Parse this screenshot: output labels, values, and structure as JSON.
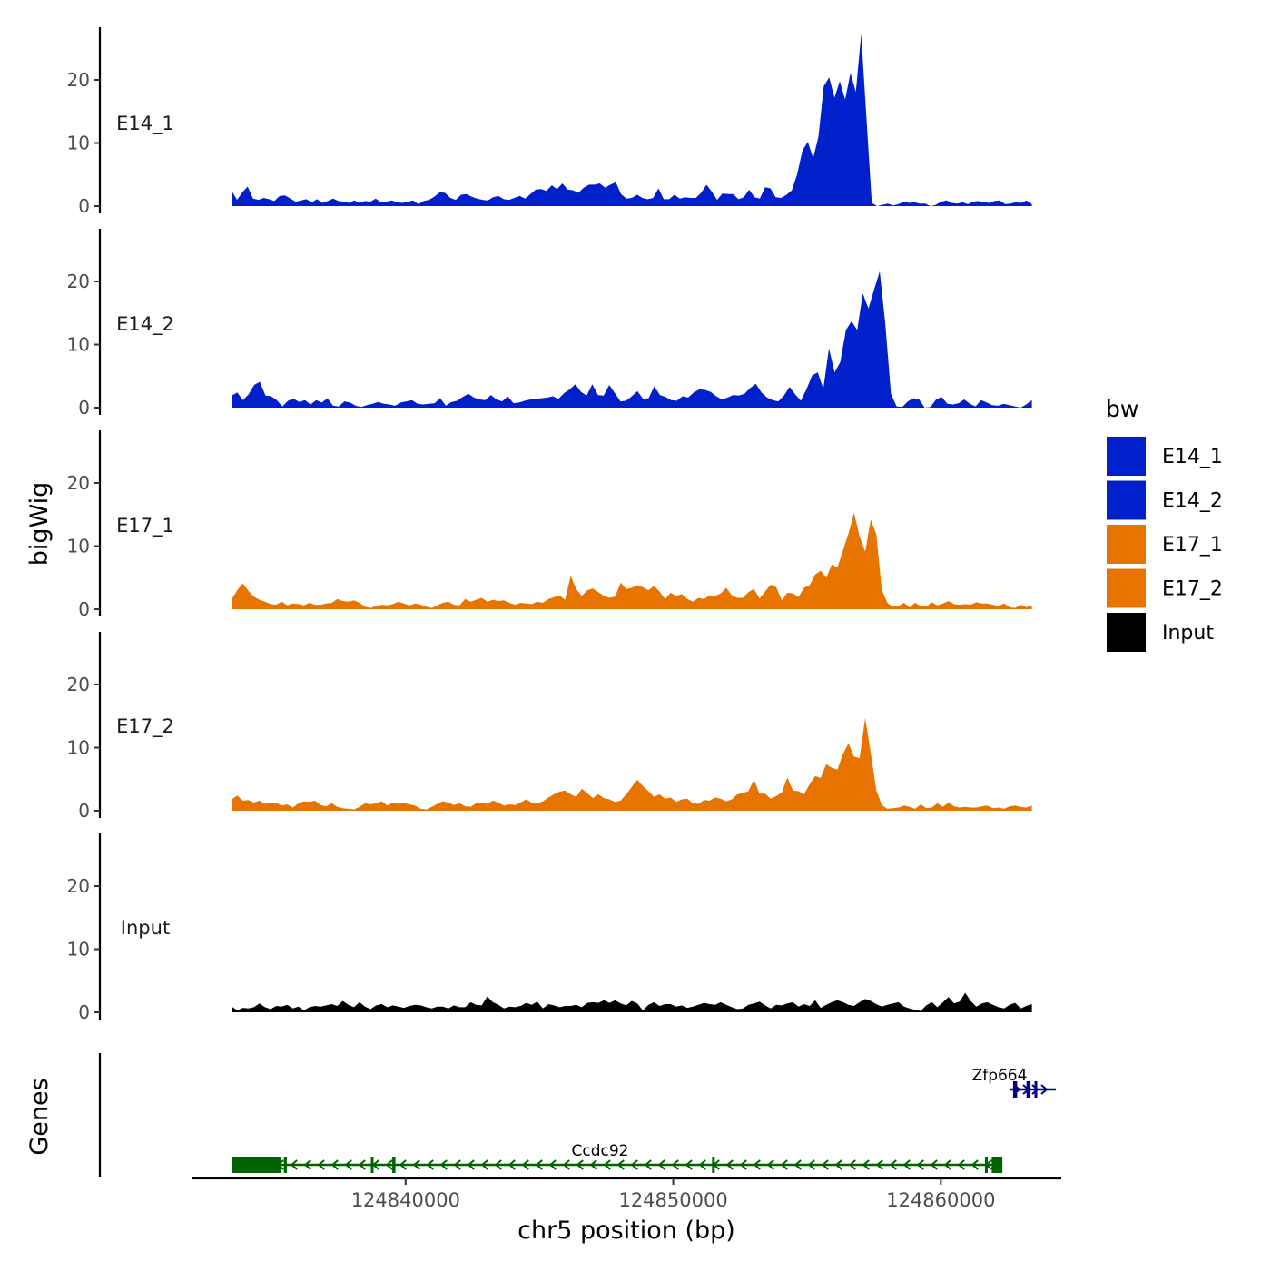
{
  "chart_data": {
    "type": "area",
    "ylabel": "bigWig",
    "genes_label": "Genes",
    "xlabel": "chr5 position (bp)",
    "xlim": [
      124832000,
      124864500
    ],
    "x_range_signal": [
      124833500,
      124863400
    ],
    "x_ticks": [
      124840000,
      124850000,
      124860000
    ],
    "x_tick_labels": [
      "124840000",
      "124850000",
      "124860000"
    ],
    "ylim": [
      0,
      27
    ],
    "y_ticks": [
      0,
      10,
      20
    ],
    "y_tick_labels": [
      "0",
      "10",
      "20"
    ],
    "legend": {
      "title": "bw",
      "position": "right",
      "entries": [
        {
          "label": "E14_1",
          "color": "#0020CC"
        },
        {
          "label": "E14_2",
          "color": "#0020CC"
        },
        {
          "label": "E17_1",
          "color": "#E87400"
        },
        {
          "label": "E17_2",
          "color": "#E87400"
        },
        {
          "label": "Input",
          "color": "#000000"
        }
      ]
    },
    "series": [
      {
        "name": "E14_1",
        "color": "#0020CC",
        "values": [
          2.4,
          1.0,
          2.2,
          3.1,
          1.2,
          1.0,
          1.3,
          1.1,
          0.8,
          1.6,
          1.7,
          1.2,
          0.7,
          0.9,
          1.1,
          0.6,
          1.1,
          0.5,
          0.8,
          1.2,
          0.8,
          0.7,
          0.5,
          0.9,
          0.5,
          0.8,
          0.7,
          1.2,
          0.6,
          0.7,
          0.9,
          0.6,
          0.5,
          0.7,
          0.9,
          0.3,
          0.8,
          1.0,
          1.5,
          2.2,
          2.1,
          1.3,
          1.0,
          1.8,
          1.9,
          1.5,
          1.2,
          1.0,
          0.9,
          1.4,
          1.6,
          1.1,
          1.0,
          1.3,
          1.6,
          1.2,
          1.9,
          2.6,
          2.7,
          2.4,
          3.3,
          2.7,
          3.6,
          2.6,
          2.5,
          2.1,
          2.9,
          3.4,
          3.4,
          3.6,
          2.9,
          3.4,
          3.8,
          1.9,
          1.2,
          1.3,
          1.8,
          1.3,
          1.1,
          1.3,
          2.8,
          1.1,
          1.1,
          1.8,
          1.2,
          1.4,
          1.3,
          1.3,
          2.1,
          3.4,
          2.3,
          1.0,
          2.0,
          1.9,
          1.9,
          1.1,
          1.4,
          2.6,
          1.4,
          1.2,
          3.0,
          2.8,
          1.4,
          1.3,
          1.8,
          2.5,
          5.0,
          8.8,
          10.2,
          7.6,
          11.0,
          19.0,
          20.4,
          17.2,
          19.8,
          16.9,
          21.1,
          18.1,
          27.3,
          13.9,
          0.5,
          0.0,
          0.2,
          0.4,
          0.1,
          0.3,
          0.7,
          0.5,
          0.6,
          0.4,
          0.4,
          0.0,
          0.2,
          0.7,
          0.9,
          0.5,
          0.4,
          0.6,
          0.3,
          0.7,
          0.8,
          0.6,
          0.5,
          0.8,
          0.9,
          0.3,
          0.4,
          0.6,
          0.5,
          0.9,
          0.3
        ]
      },
      {
        "name": "E14_2",
        "color": "#0020CC",
        "values": [
          1.9,
          2.4,
          1.2,
          2.1,
          3.6,
          4.1,
          1.9,
          1.8,
          1.2,
          0.2,
          1.1,
          1.4,
          0.9,
          1.2,
          0.5,
          1.2,
          0.8,
          1.5,
          0.3,
          0.2,
          1.0,
          0.8,
          0.3,
          0.1,
          0.4,
          0.6,
          0.9,
          0.6,
          0.5,
          0.3,
          0.8,
          1.0,
          1.2,
          0.6,
          0.5,
          0.6,
          0.7,
          1.5,
          0.3,
          0.9,
          1.1,
          1.7,
          2.2,
          1.6,
          1.3,
          1.2,
          2.0,
          1.3,
          1.0,
          1.8,
          0.7,
          0.8,
          1.1,
          1.3,
          1.4,
          1.5,
          1.6,
          1.8,
          1.4,
          2.3,
          2.9,
          3.7,
          2.5,
          1.9,
          3.7,
          2.0,
          1.9,
          3.6,
          2.3,
          1.0,
          1.1,
          1.8,
          2.6,
          1.4,
          1.5,
          3.4,
          2.0,
          1.7,
          1.2,
          1.1,
          1.8,
          1.6,
          2.4,
          2.9,
          2.8,
          2.5,
          1.8,
          1.3,
          1.6,
          2.0,
          1.9,
          2.2,
          3.1,
          3.8,
          2.4,
          1.6,
          1.2,
          1.0,
          1.9,
          3.3,
          2.1,
          1.1,
          2.9,
          5.1,
          5.6,
          3.0,
          9.4,
          5.6,
          7.2,
          12.3,
          13.7,
          12.3,
          18.1,
          15.7,
          18.7,
          21.6,
          13.2,
          2.2,
          0.2,
          0.1,
          1.0,
          1.5,
          1.3,
          0.0,
          0.1,
          1.3,
          1.7,
          0.6,
          0.5,
          0.7,
          1.3,
          0.6,
          0.2,
          1.2,
          0.8,
          0.4,
          0.3,
          0.6,
          0.4,
          0.2,
          0.0,
          0.5,
          1.2
        ]
      },
      {
        "name": "E17_1",
        "color": "#E87400",
        "values": [
          1.6,
          3.0,
          4.1,
          2.9,
          2.0,
          1.5,
          1.2,
          0.8,
          0.7,
          1.2,
          0.6,
          0.9,
          0.8,
          0.6,
          1.0,
          0.7,
          0.7,
          0.9,
          1.0,
          1.6,
          1.3,
          1.2,
          1.4,
          1.0,
          0.4,
          0.2,
          0.5,
          0.7,
          0.6,
          0.8,
          1.2,
          0.9,
          0.6,
          0.9,
          0.7,
          0.4,
          0.2,
          0.6,
          1.0,
          1.2,
          0.7,
          0.6,
          1.6,
          1.2,
          1.5,
          1.8,
          1.2,
          1.5,
          1.3,
          1.4,
          1.0,
          0.7,
          1.0,
          0.9,
          0.8,
          1.2,
          1.0,
          1.6,
          1.9,
          2.2,
          1.5,
          5.3,
          3.2,
          2.1,
          3.0,
          3.3,
          2.7,
          2.1,
          1.8,
          2.0,
          4.2,
          3.2,
          3.4,
          3.8,
          3.5,
          3.0,
          3.7,
          2.8,
          1.6,
          2.6,
          2.1,
          2.4,
          1.6,
          1.2,
          1.8,
          1.6,
          2.2,
          2.1,
          2.5,
          3.4,
          2.2,
          1.8,
          1.8,
          2.7,
          3.2,
          1.7,
          2.8,
          3.9,
          3.5,
          1.4,
          2.6,
          2.5,
          1.9,
          3.4,
          3.8,
          5.5,
          6.1,
          5.0,
          7.1,
          6.6,
          9.3,
          12.0,
          15.3,
          11.6,
          9.1,
          14.2,
          11.9,
          3.1,
          1.0,
          0.4,
          0.5,
          1.0,
          0.3,
          1.0,
          0.5,
          0.4,
          1.1,
          0.6,
          0.9,
          1.3,
          0.8,
          0.7,
          0.8,
          0.7,
          1.1,
          0.9,
          0.9,
          0.7,
          0.5,
          0.9,
          0.3,
          0.2,
          0.7,
          0.3,
          0.6
        ]
      },
      {
        "name": "E17_2",
        "color": "#E87400",
        "values": [
          1.8,
          2.4,
          1.6,
          1.7,
          1.3,
          1.6,
          1.1,
          1.2,
          1.3,
          0.8,
          1.0,
          0.5,
          1.2,
          1.5,
          1.4,
          1.6,
          0.9,
          0.7,
          1.2,
          0.6,
          0.4,
          0.3,
          0.2,
          0.6,
          1.2,
          1.0,
          1.2,
          1.5,
          0.8,
          1.3,
          1.1,
          1.2,
          1.0,
          0.8,
          0.3,
          0.2,
          0.6,
          1.1,
          1.5,
          1.3,
          0.9,
          1.2,
          0.7,
          0.6,
          1.2,
          1.3,
          1.1,
          1.6,
          1.3,
          0.8,
          1.0,
          0.9,
          1.3,
          1.8,
          1.3,
          1.2,
          1.5,
          2.1,
          2.6,
          3.0,
          3.2,
          2.6,
          2.2,
          3.5,
          2.8,
          2.0,
          2.6,
          2.0,
          1.8,
          1.4,
          1.6,
          2.6,
          3.8,
          4.9,
          3.9,
          3.1,
          2.2,
          2.6,
          1.9,
          2.1,
          1.4,
          1.8,
          1.9,
          1.2,
          1.1,
          1.7,
          1.6,
          2.1,
          1.9,
          1.5,
          1.8,
          2.6,
          2.8,
          3.1,
          4.9,
          2.7,
          2.7,
          1.9,
          2.3,
          2.9,
          5.3,
          3.2,
          3.1,
          2.6,
          4.2,
          5.5,
          5.2,
          7.4,
          6.8,
          6.5,
          9.0,
          10.7,
          8.6,
          8.3,
          14.7,
          9.2,
          3.3,
          0.9,
          0.3,
          0.4,
          0.5,
          0.8,
          0.6,
          0.3,
          1.0,
          0.4,
          0.5,
          1.2,
          0.6,
          1.3,
          0.7,
          0.5,
          0.6,
          0.5,
          0.5,
          0.7,
          0.8,
          0.4,
          0.5,
          0.3,
          0.7,
          0.8,
          0.6,
          0.5,
          0.8
        ]
      },
      {
        "name": "Input",
        "color": "#000000",
        "values": [
          0.9,
          0.3,
          0.7,
          0.6,
          0.8,
          1.4,
          0.8,
          0.5,
          1.0,
          0.9,
          1.2,
          0.6,
          0.9,
          0.3,
          0.8,
          1.0,
          0.9,
          1.1,
          1.3,
          1.0,
          1.8,
          1.2,
          0.8,
          1.6,
          0.9,
          0.5,
          1.1,
          1.3,
          0.8,
          1.1,
          0.9,
          0.7,
          1.0,
          1.2,
          1.1,
          0.8,
          0.6,
          0.9,
          0.9,
          0.6,
          1.1,
          0.8,
          0.8,
          1.6,
          1.2,
          1.1,
          2.5,
          1.6,
          1.2,
          0.6,
          0.9,
          0.8,
          1.0,
          1.5,
          1.2,
          1.7,
          0.6,
          1.3,
          1.1,
          0.8,
          1.0,
          1.0,
          1.2,
          0.8,
          1.5,
          1.6,
          1.5,
          1.9,
          1.5,
          1.9,
          1.4,
          1.1,
          1.8,
          1.4,
          0.3,
          1.2,
          1.6,
          1.0,
          1.3,
          1.3,
          0.9,
          1.1,
          0.7,
          0.9,
          1.2,
          1.5,
          1.3,
          1.2,
          1.6,
          1.2,
          0.8,
          0.5,
          0.6,
          1.2,
          1.4,
          1.7,
          1.1,
          0.6,
          1.2,
          1.1,
          1.4,
          1.6,
          0.9,
          1.3,
          1.0,
          1.9,
          0.7,
          1.2,
          1.6,
          1.9,
          1.6,
          1.2,
          1.0,
          1.6,
          2.1,
          1.8,
          1.3,
          0.9,
          1.2,
          1.4,
          1.6,
          0.9,
          0.6,
          0.4,
          0.2,
          1.1,
          1.6,
          0.8,
          1.6,
          2.4,
          1.4,
          1.7,
          3.1,
          1.8,
          0.9,
          1.4,
          1.6,
          1.2,
          0.8,
          0.6,
          1.2,
          1.5,
          0.6,
          1.0,
          1.3
        ]
      }
    ],
    "genes": [
      {
        "name": "Ccdc92",
        "color": "#006400",
        "strand": "-",
        "start": 124833500,
        "end": 124862300,
        "exons": [
          [
            124833500,
            124835350
          ],
          [
            124835450,
            124835560
          ],
          [
            124838700,
            124838800
          ],
          [
            124839500,
            124839620
          ],
          [
            124851450,
            124851500
          ],
          [
            124861650,
            124861750
          ],
          [
            124861900,
            124862300
          ]
        ]
      },
      {
        "name": "Zfp664",
        "color": "#00008B",
        "strand": "+",
        "start": 124862600,
        "end": 124864300,
        "exons": [
          [
            124862700,
            124862850
          ],
          [
            124863200,
            124863350
          ],
          [
            124863500,
            124863600
          ]
        ]
      }
    ]
  }
}
